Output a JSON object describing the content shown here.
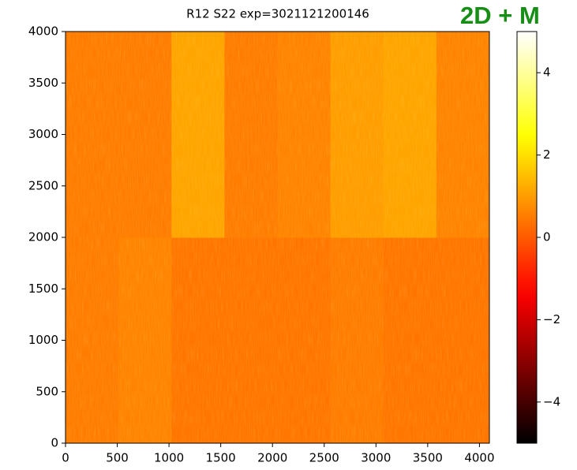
{
  "chart_data": {
    "type": "heatmap",
    "title": "R12 S22 exp=3021121200146",
    "annotation": "2D + M",
    "colormap": "hot",
    "xedges": [
      0,
      512,
      1024,
      1536,
      2048,
      2560,
      3072,
      3584,
      4096
    ],
    "yedges": [
      0,
      2000,
      4000
    ],
    "z": [
      [
        0.5,
        0.6,
        0.4,
        0.4,
        0.4,
        0.5,
        0.4,
        0.4
      ],
      [
        0.5,
        0.5,
        1.1,
        0.5,
        0.6,
        1.0,
        1.1,
        0.6
      ]
    ],
    "xlim": [
      0,
      4096
    ],
    "ylim": [
      0,
      4000
    ],
    "xticks": [
      0,
      500,
      1000,
      1500,
      2000,
      2500,
      3000,
      3500,
      4000
    ],
    "yticks": [
      0,
      500,
      1000,
      1500,
      2000,
      2500,
      3000,
      3500,
      4000
    ],
    "clim": [
      -5,
      5
    ],
    "cticks": [
      {
        "value": -4,
        "label": "−4"
      },
      {
        "value": -2,
        "label": "−2"
      },
      0,
      2,
      4
    ]
  }
}
